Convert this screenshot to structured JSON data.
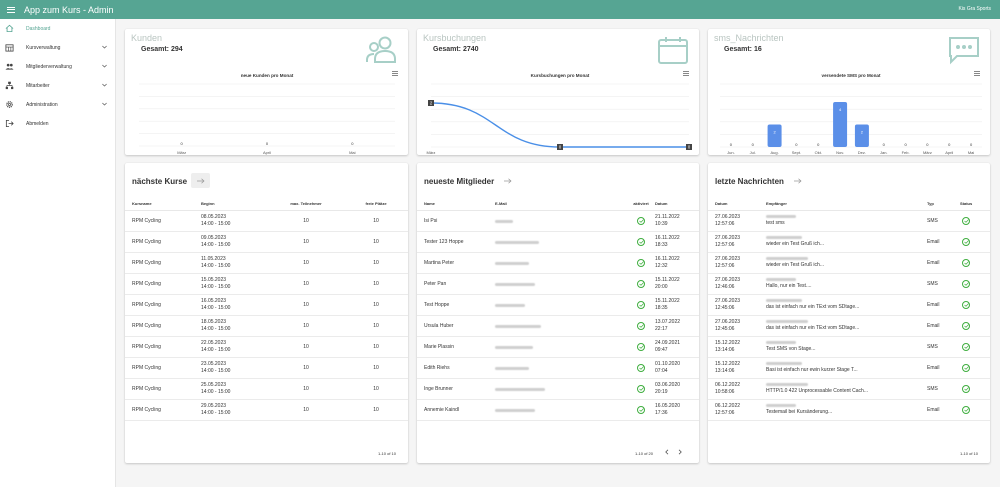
{
  "app": {
    "title": "App zum Kurs - Admin",
    "user": "Kis Gra Sports"
  },
  "sidebar": {
    "items": [
      {
        "label": "Dashboard",
        "icon": "home-icon"
      },
      {
        "label": "Kursverwaltung",
        "icon": "calendar-grid-icon"
      },
      {
        "label": "Mitgliederverwaltung",
        "icon": "group-icon"
      },
      {
        "label": "Mitarbeiter",
        "icon": "sitemap-icon"
      },
      {
        "label": "Administration",
        "icon": "gear-icon"
      },
      {
        "label": "Abmelden",
        "icon": "logout-icon"
      }
    ]
  },
  "colors": {
    "accent": "#56a593",
    "line": "#4a8fe7",
    "bar": "#5b8fe8"
  },
  "stats": [
    {
      "title": "Kunden",
      "total": "Gesamt: 294",
      "icon": "people-icon"
    },
    {
      "title": "Kursbuchungen",
      "total": "Gesamt: 2740",
      "icon": "calendar-icon"
    },
    {
      "title": "sms_Nachrichten",
      "total": "Gesamt: 16",
      "icon": "chat-bubble-icon"
    }
  ],
  "chart_data": [
    {
      "type": "bar",
      "title": "neue Kunden pro Monat",
      "categories": [
        "März",
        "April",
        "Mai"
      ],
      "values": [
        0,
        0,
        0
      ],
      "grid": true
    },
    {
      "type": "line",
      "title": "Kursbuchungen pro Monat",
      "categories": [
        "März",
        "April",
        "Mai"
      ],
      "values": [
        2,
        0,
        0
      ],
      "grid": true
    },
    {
      "type": "bar",
      "title": "versendete SMS pro Monat",
      "categories": [
        "Jun.",
        "Jul.",
        "Aug.",
        "Sept.",
        "Okt.",
        "Nov.",
        "Dez.",
        "Jan.",
        "Feb.",
        "März",
        "April",
        "Mai"
      ],
      "values": [
        0,
        0,
        2,
        0,
        0,
        4,
        2,
        0,
        0,
        0,
        0,
        0
      ],
      "grid": true
    }
  ],
  "courses": {
    "title": "nächste Kurse",
    "headers": [
      "Kursname",
      "Beginn",
      "max. Teilnehmer",
      "freie Plätze"
    ],
    "rows": [
      {
        "name": "RPM Cycling",
        "date": "08.05.2023",
        "time": "14:00 - 15:00",
        "max": "10",
        "free": "10"
      },
      {
        "name": "RPM Cycling",
        "date": "09.05.2023",
        "time": "14:00 - 15:00",
        "max": "10",
        "free": "10"
      },
      {
        "name": "RPM Cycling",
        "date": "11.05.2023",
        "time": "14:00 - 15:00",
        "max": "10",
        "free": "10"
      },
      {
        "name": "RPM Cycling",
        "date": "15.05.2023",
        "time": "14:00 - 15:00",
        "max": "10",
        "free": "10"
      },
      {
        "name": "RPM Cycling",
        "date": "16.05.2023",
        "time": "14:00 - 15:00",
        "max": "10",
        "free": "10"
      },
      {
        "name": "RPM Cycling",
        "date": "18.05.2023",
        "time": "14:00 - 15:00",
        "max": "10",
        "free": "10"
      },
      {
        "name": "RPM Cycling",
        "date": "22.05.2023",
        "time": "14:00 - 15:00",
        "max": "10",
        "free": "10"
      },
      {
        "name": "RPM Cycling",
        "date": "23.05.2023",
        "time": "14:00 - 15:00",
        "max": "10",
        "free": "10"
      },
      {
        "name": "RPM Cycling",
        "date": "25.05.2023",
        "time": "14:00 - 15:00",
        "max": "10",
        "free": "10"
      },
      {
        "name": "RPM Cycling",
        "date": "29.05.2023",
        "time": "14:00 - 15:00",
        "max": "10",
        "free": "10"
      }
    ],
    "pagination": "1-10 of 10"
  },
  "members": {
    "title": "neueste Mitglieder",
    "headers": [
      "Name",
      "E-Mail",
      "aktiviert",
      "Datum"
    ],
    "rows": [
      {
        "name": "Isi Psi",
        "date": "21.11.2022",
        "time": "10:39",
        "activated": true
      },
      {
        "name": "Tester 123 Hoppe",
        "date": "16.11.2022",
        "time": "18:33",
        "activated": true
      },
      {
        "name": "Martina Peter",
        "date": "16.11.2022",
        "time": "12:32",
        "activated": true
      },
      {
        "name": "Peter Pan",
        "date": "15.11.2022",
        "time": "20:00",
        "activated": true
      },
      {
        "name": "Test Hoppe",
        "date": "15.11.2022",
        "time": "18:35",
        "activated": true
      },
      {
        "name": "Ursula Huber",
        "date": "13.07.2022",
        "time": "22:17",
        "activated": true
      },
      {
        "name": "Marie Plassin",
        "date": "24.09.2021",
        "time": "09:47",
        "activated": true
      },
      {
        "name": "Edith Riehs",
        "date": "01.10.2020",
        "time": "07:04",
        "activated": true
      },
      {
        "name": "Inge Brunner",
        "date": "03.06.2020",
        "time": "20:19",
        "activated": true
      },
      {
        "name": "Annemie Kaindl",
        "date": "16.05.2020",
        "time": "17:36",
        "activated": true
      }
    ],
    "pagination": "1-10 of 20"
  },
  "messages": {
    "title": "letzte Nachrichten",
    "headers": [
      "Datum",
      "Empfänger",
      "Typ",
      "Status"
    ],
    "rows": [
      {
        "date": "27.06.2023",
        "time": "12:57:06",
        "text": "test sms",
        "type": "SMS"
      },
      {
        "date": "27.06.2023",
        "time": "12:57:06",
        "text": "wieder ein Test Gruß ich...",
        "type": "Email"
      },
      {
        "date": "27.06.2023",
        "time": "12:57:06",
        "text": "wieder ein Test Gruß ich...",
        "type": "Email"
      },
      {
        "date": "27.06.2023",
        "time": "12:46:06",
        "text": "Hallo, nur ein Test....",
        "type": "SMS"
      },
      {
        "date": "27.06.2023",
        "time": "12:45:06",
        "text": "das ist einfach nur ein TExt vom SDtage...",
        "type": "Email"
      },
      {
        "date": "27.06.2023",
        "time": "12:45:06",
        "text": "das ist einfach nur ein TExt vom SDtage...",
        "type": "Email"
      },
      {
        "date": "15.12.2022",
        "time": "13:14:06",
        "text": "Test SMS von Stage...",
        "type": "SMS"
      },
      {
        "date": "15.12.2022",
        "time": "13:14:06",
        "text": "Basi ist einfach nur ewin kurzer Stage T...",
        "type": "Email"
      },
      {
        "date": "06.12.2022",
        "time": "10:58:06",
        "text": "HTTP/1.0 422 Unprocessable Content Cach...",
        "type": "SMS"
      },
      {
        "date": "06.12.2022",
        "time": "12:57:06",
        "text": "Testemail bei Kursänderung...",
        "type": "Email"
      }
    ],
    "pagination": "1-10 of 10"
  }
}
